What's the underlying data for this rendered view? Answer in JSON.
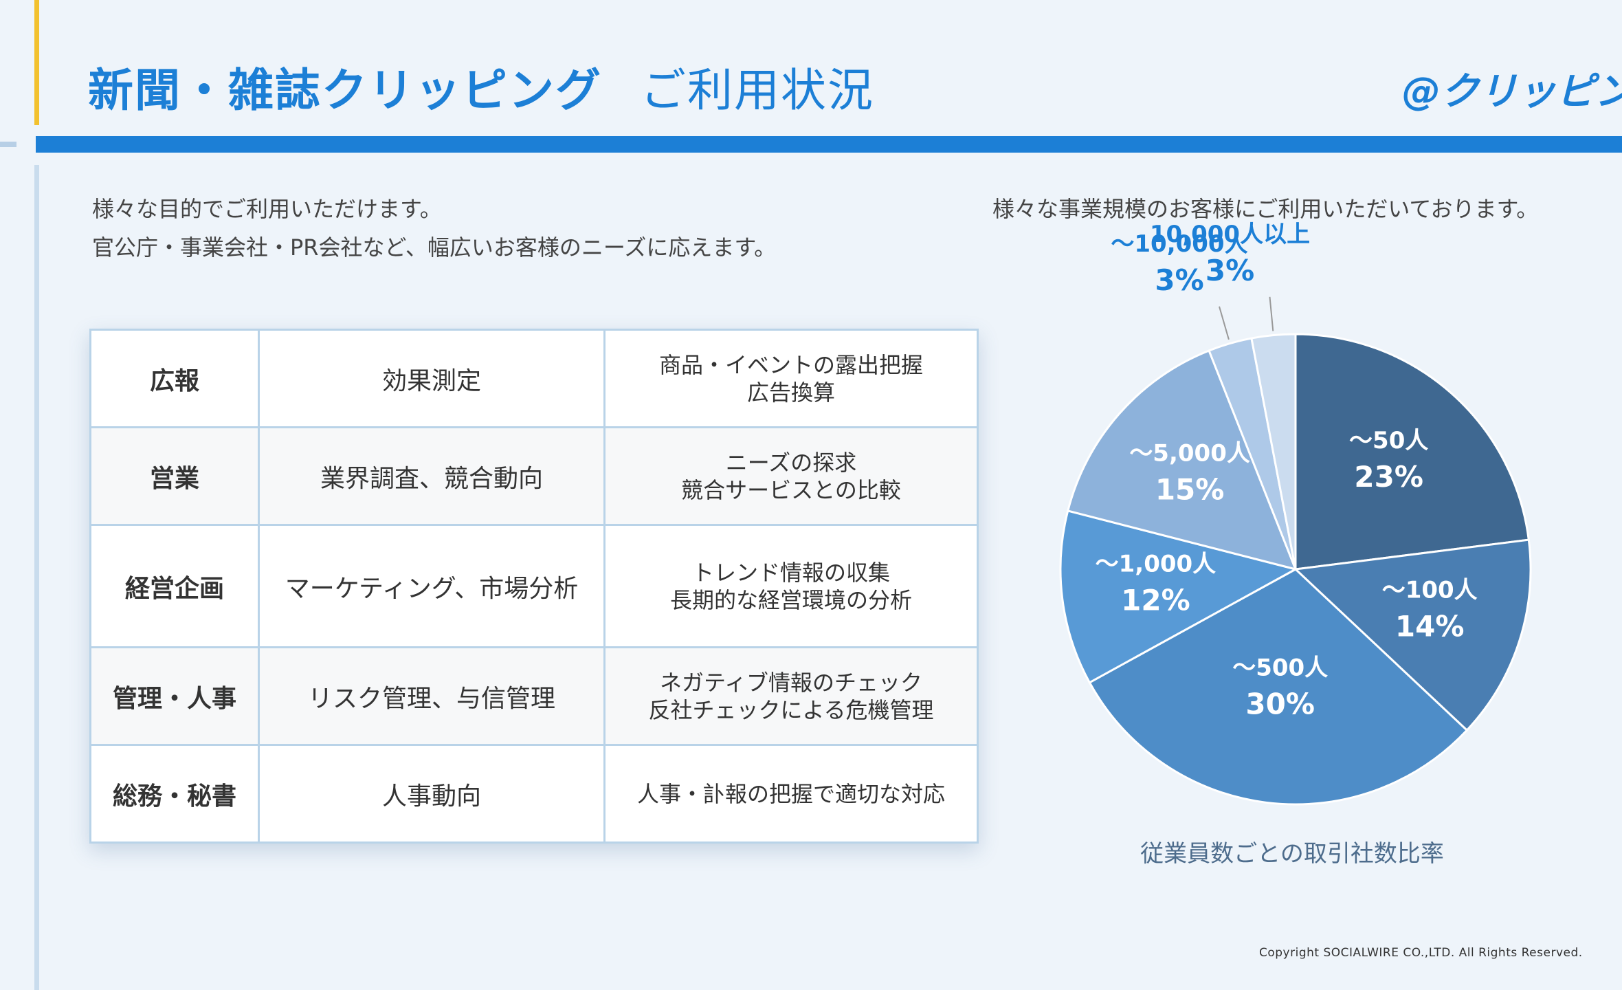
{
  "header": {
    "title": "新聞・雑誌クリッピング",
    "subtitle": "ご利用状況",
    "logo": "@クリッピング"
  },
  "left": {
    "intro_line1": "様々な目的でご利用いただけます。",
    "intro_line2": "官公庁・事業会社・PR会社など、幅広いお客様のニーズに応えます。",
    "table": [
      {
        "department": "広報",
        "purpose": "効果測定",
        "detail_lines": [
          "商品・イベントの露出把握",
          "広告換算"
        ]
      },
      {
        "department": "営業",
        "purpose": "業界調査、競合動向",
        "detail_lines": [
          "ニーズの探求",
          "競合サービスとの比較"
        ]
      },
      {
        "department": "経営企画",
        "purpose": "マーケティング、市場分析",
        "detail_lines": [
          "トレンド情報の収集",
          "長期的な経営環境の分析"
        ]
      },
      {
        "department": "管理・人事",
        "purpose": "リスク管理、与信管理",
        "detail_lines": [
          "ネガティブ情報のチェック",
          "反社チェックによる危機管理"
        ]
      },
      {
        "department": "総務・秘書",
        "purpose": "人事動向",
        "detail_lines": [
          "人事・訃報の把握で適切な対応"
        ]
      }
    ]
  },
  "right": {
    "intro": "様々な事業規模のお客様にご利用いただいております。",
    "caption": "従業員数ごとの取引社数比率"
  },
  "chart_data": {
    "type": "pie",
    "title": "従業員数ごとの取引社数比率",
    "categories": [
      "〜50人",
      "〜100人",
      "〜500人",
      "〜1,000人",
      "〜5,000人",
      "〜10,000人",
      "10,000人以上"
    ],
    "values": [
      23,
      14,
      30,
      12,
      15,
      3,
      3
    ],
    "labels": [
      "23%",
      "14%",
      "30%",
      "12%",
      "15%",
      "3%",
      "3%"
    ],
    "colors": [
      "#3f6891",
      "#4a7eb2",
      "#4e8dc8",
      "#589ad6",
      "#8db2db",
      "#aec9e8",
      "#cbdcef"
    ],
    "label_colors": [
      "#ffffff",
      "#ffffff",
      "#ffffff",
      "#ffffff",
      "#ffffff",
      "#1c7fd6",
      "#1c7fd6"
    ],
    "start_angle_deg": 0,
    "direction": "clockwise"
  },
  "footer": {
    "copyright": "Copyright SOCIALWIRE CO.,LTD. All Rights Reserved."
  }
}
